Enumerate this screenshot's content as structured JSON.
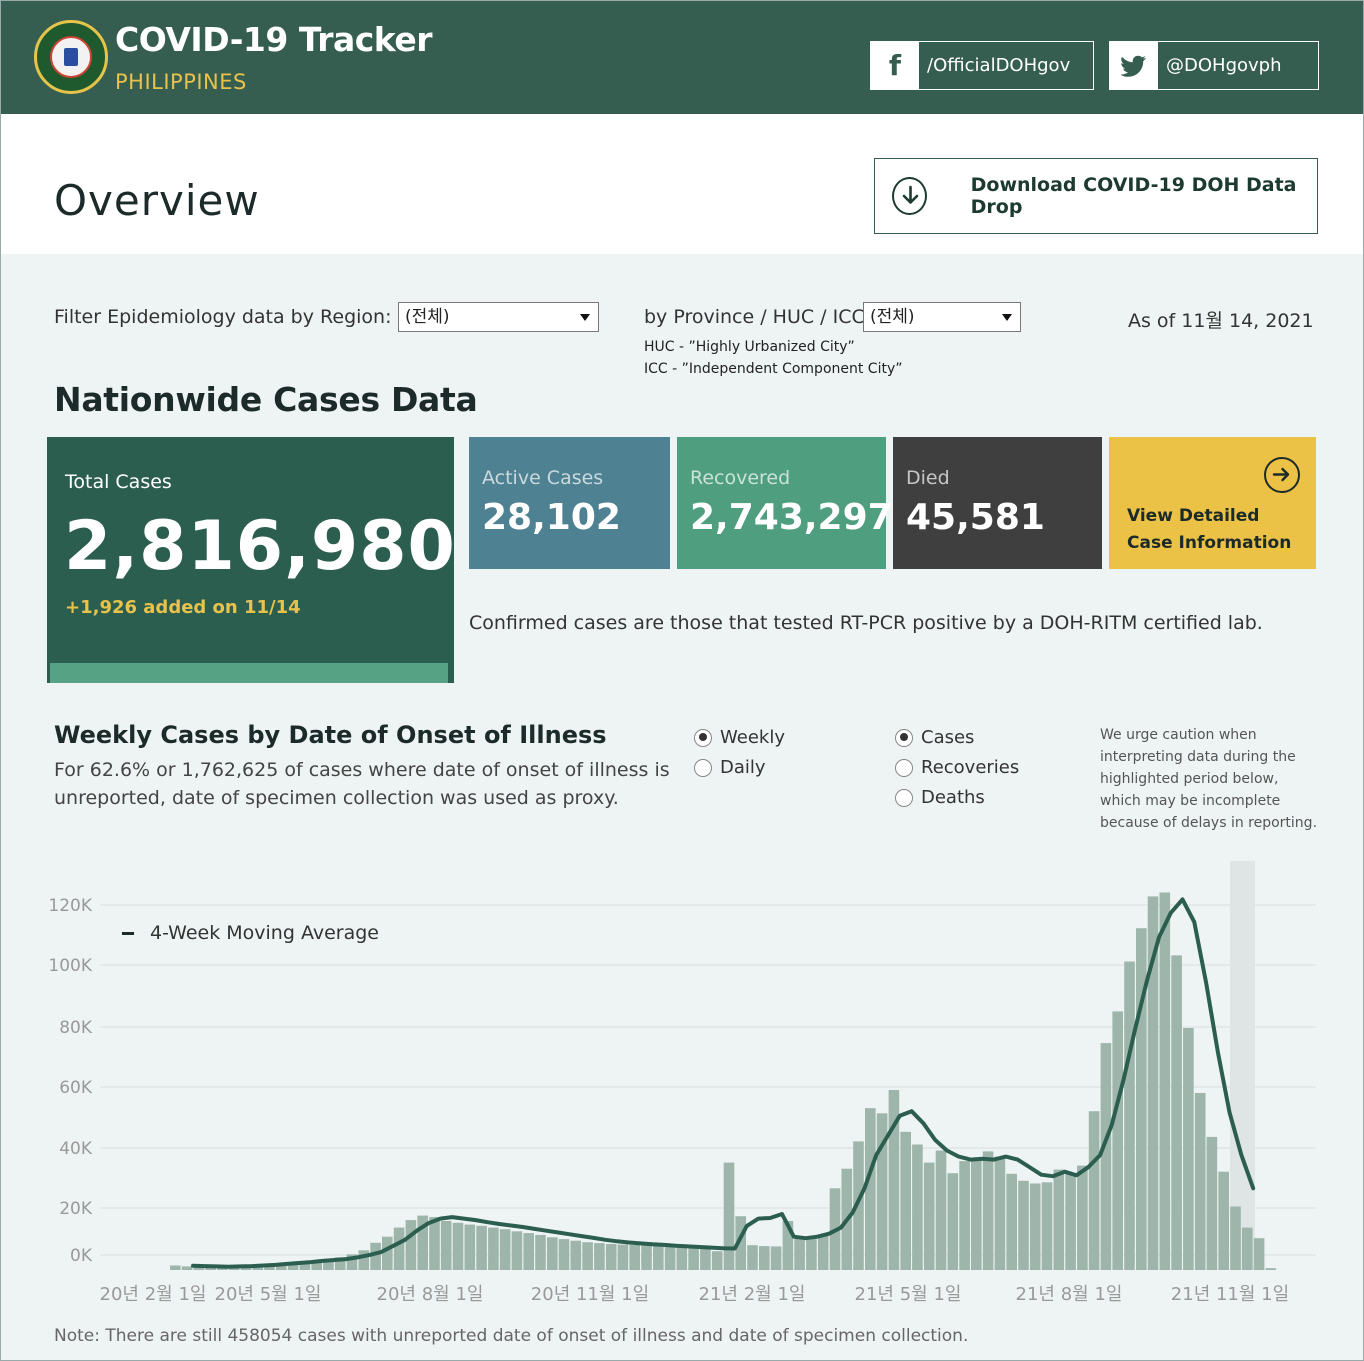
{
  "header": {
    "title": "COVID-19 Tracker",
    "subtitle": "PHILIPPINES",
    "facebook": "/OfficialDOHgov",
    "twitter": "@DOHgovph"
  },
  "overview": {
    "title": "Overview",
    "download_label": "Download COVID-19 DOH Data Drop"
  },
  "filters": {
    "region_label": "Filter Epidemiology data by Region:",
    "region_value": "(전체)",
    "province_label": "by Province / HUC / ICC:",
    "province_value": "(전체)",
    "huc_note": "HUC - ”Highly Urbanized City”",
    "icc_note": "ICC - ”Independent Component City”",
    "as_of": "As of 11월 14, 2021"
  },
  "nationwide": {
    "title": "Nationwide Cases Data",
    "total_label": "Total Cases",
    "total_value": "2,816,980",
    "added": "+1,926 added on 11/14",
    "active_label": "Active Cases",
    "active_value": "28,102",
    "recovered_label": "Recovered",
    "recovered_value": "2,743,297",
    "died_label": "Died",
    "died_value": "45,581",
    "view_line1": "View Detailed",
    "view_line2": "Case Information",
    "confirmed_note": "Confirmed cases are those that tested RT-PCR positive by a DOH-RITM certified lab."
  },
  "weekly": {
    "title": "Weekly Cases by Date of Onset of Illness",
    "desc": "For 62.6% or 1,762,625 of cases where date of onset of illness is unreported, date of specimen collection was used as proxy.",
    "period_options": [
      "Weekly",
      "Daily"
    ],
    "period_selected": "Weekly",
    "metric_options": [
      "Cases",
      "Recoveries",
      "Deaths"
    ],
    "metric_selected": "Cases",
    "caution": "We urge caution when interpreting data during the highlighted period below, which may be incomplete because of delays in reporting.",
    "legend_ma": "4-Week Moving Average",
    "footnote": "Note: There are still 458054 cases with unreported date of onset of illness and date of specimen collection."
  },
  "colors": {
    "header_bg": "#365e50",
    "accent_yellow": "#e8c24a",
    "bar_fill": "#9db5ab",
    "ma_line": "#2c5e50"
  },
  "chart_data": {
    "type": "bar",
    "y_ticks": [
      "0K",
      "20K",
      "40K",
      "60K",
      "80K",
      "100K",
      "120K"
    ],
    "ylim": [
      0,
      125000
    ],
    "x_ticks": [
      "20년 2월 1일",
      "20년 5월 1일",
      "20년 8월 1일",
      "20년 11월 1일",
      "21년 2월 1일",
      "21년 5월 1일",
      "21년 8월 1일",
      "21년 11월 1일"
    ],
    "weekly_cases": [
      1500,
      1200,
      900,
      1000,
      1200,
      1300,
      1500,
      1700,
      2000,
      2300,
      2600,
      3000,
      3300,
      3600,
      4200,
      5200,
      6500,
      9000,
      11000,
      14000,
      16500,
      18000,
      17500,
      16200,
      15600,
      15000,
      14600,
      14000,
      13500,
      12800,
      12200,
      11600,
      10800,
      10200,
      9700,
      9200,
      8900,
      8600,
      8400,
      8300,
      8100,
      7900,
      7700,
      7500,
      7200,
      7000,
      6200,
      35500,
      17800,
      8200,
      7900,
      7800,
      16200,
      11200,
      10500,
      11800,
      27000,
      33500,
      42500,
      53500,
      51800,
      59500,
      45700,
      41500,
      35500,
      39500,
      32000,
      36000,
      37000,
      39200,
      37500,
      31800,
      29500,
      28600,
      29000,
      33200,
      31800,
      34500,
      52500,
      75000,
      85500,
      102000,
      113000,
      123500,
      124800,
      104000,
      80000,
      58500,
      44000,
      32500,
      21000,
      14000,
      10500,
      600
    ],
    "moving_average": [
      1400,
      1300,
      1200,
      1100,
      1200,
      1300,
      1500,
      1700,
      2000,
      2300,
      2600,
      3000,
      3300,
      3600,
      4200,
      5000,
      6000,
      8000,
      10000,
      13000,
      15500,
      17000,
      17500,
      17000,
      16500,
      15800,
      15200,
      14700,
      14200,
      13600,
      13000,
      12400,
      11800,
      11200,
      10600,
      10000,
      9500,
      9100,
      8800,
      8500,
      8300,
      8000,
      7800,
      7600,
      7400,
      7200,
      7100,
      14500,
      17000,
      17200,
      18500,
      11000,
      10500,
      11000,
      12000,
      14000,
      19000,
      27000,
      38000,
      44500,
      51000,
      52500,
      48500,
      43000,
      39500,
      37500,
      36500,
      36800,
      36500,
      37500,
      36500,
      34000,
      31500,
      31000,
      32500,
      31300,
      34000,
      38000,
      48000,
      63000,
      80000,
      96000,
      110000,
      118000,
      122500,
      115000,
      95000,
      72000,
      52000,
      38000,
      27000
    ]
  }
}
